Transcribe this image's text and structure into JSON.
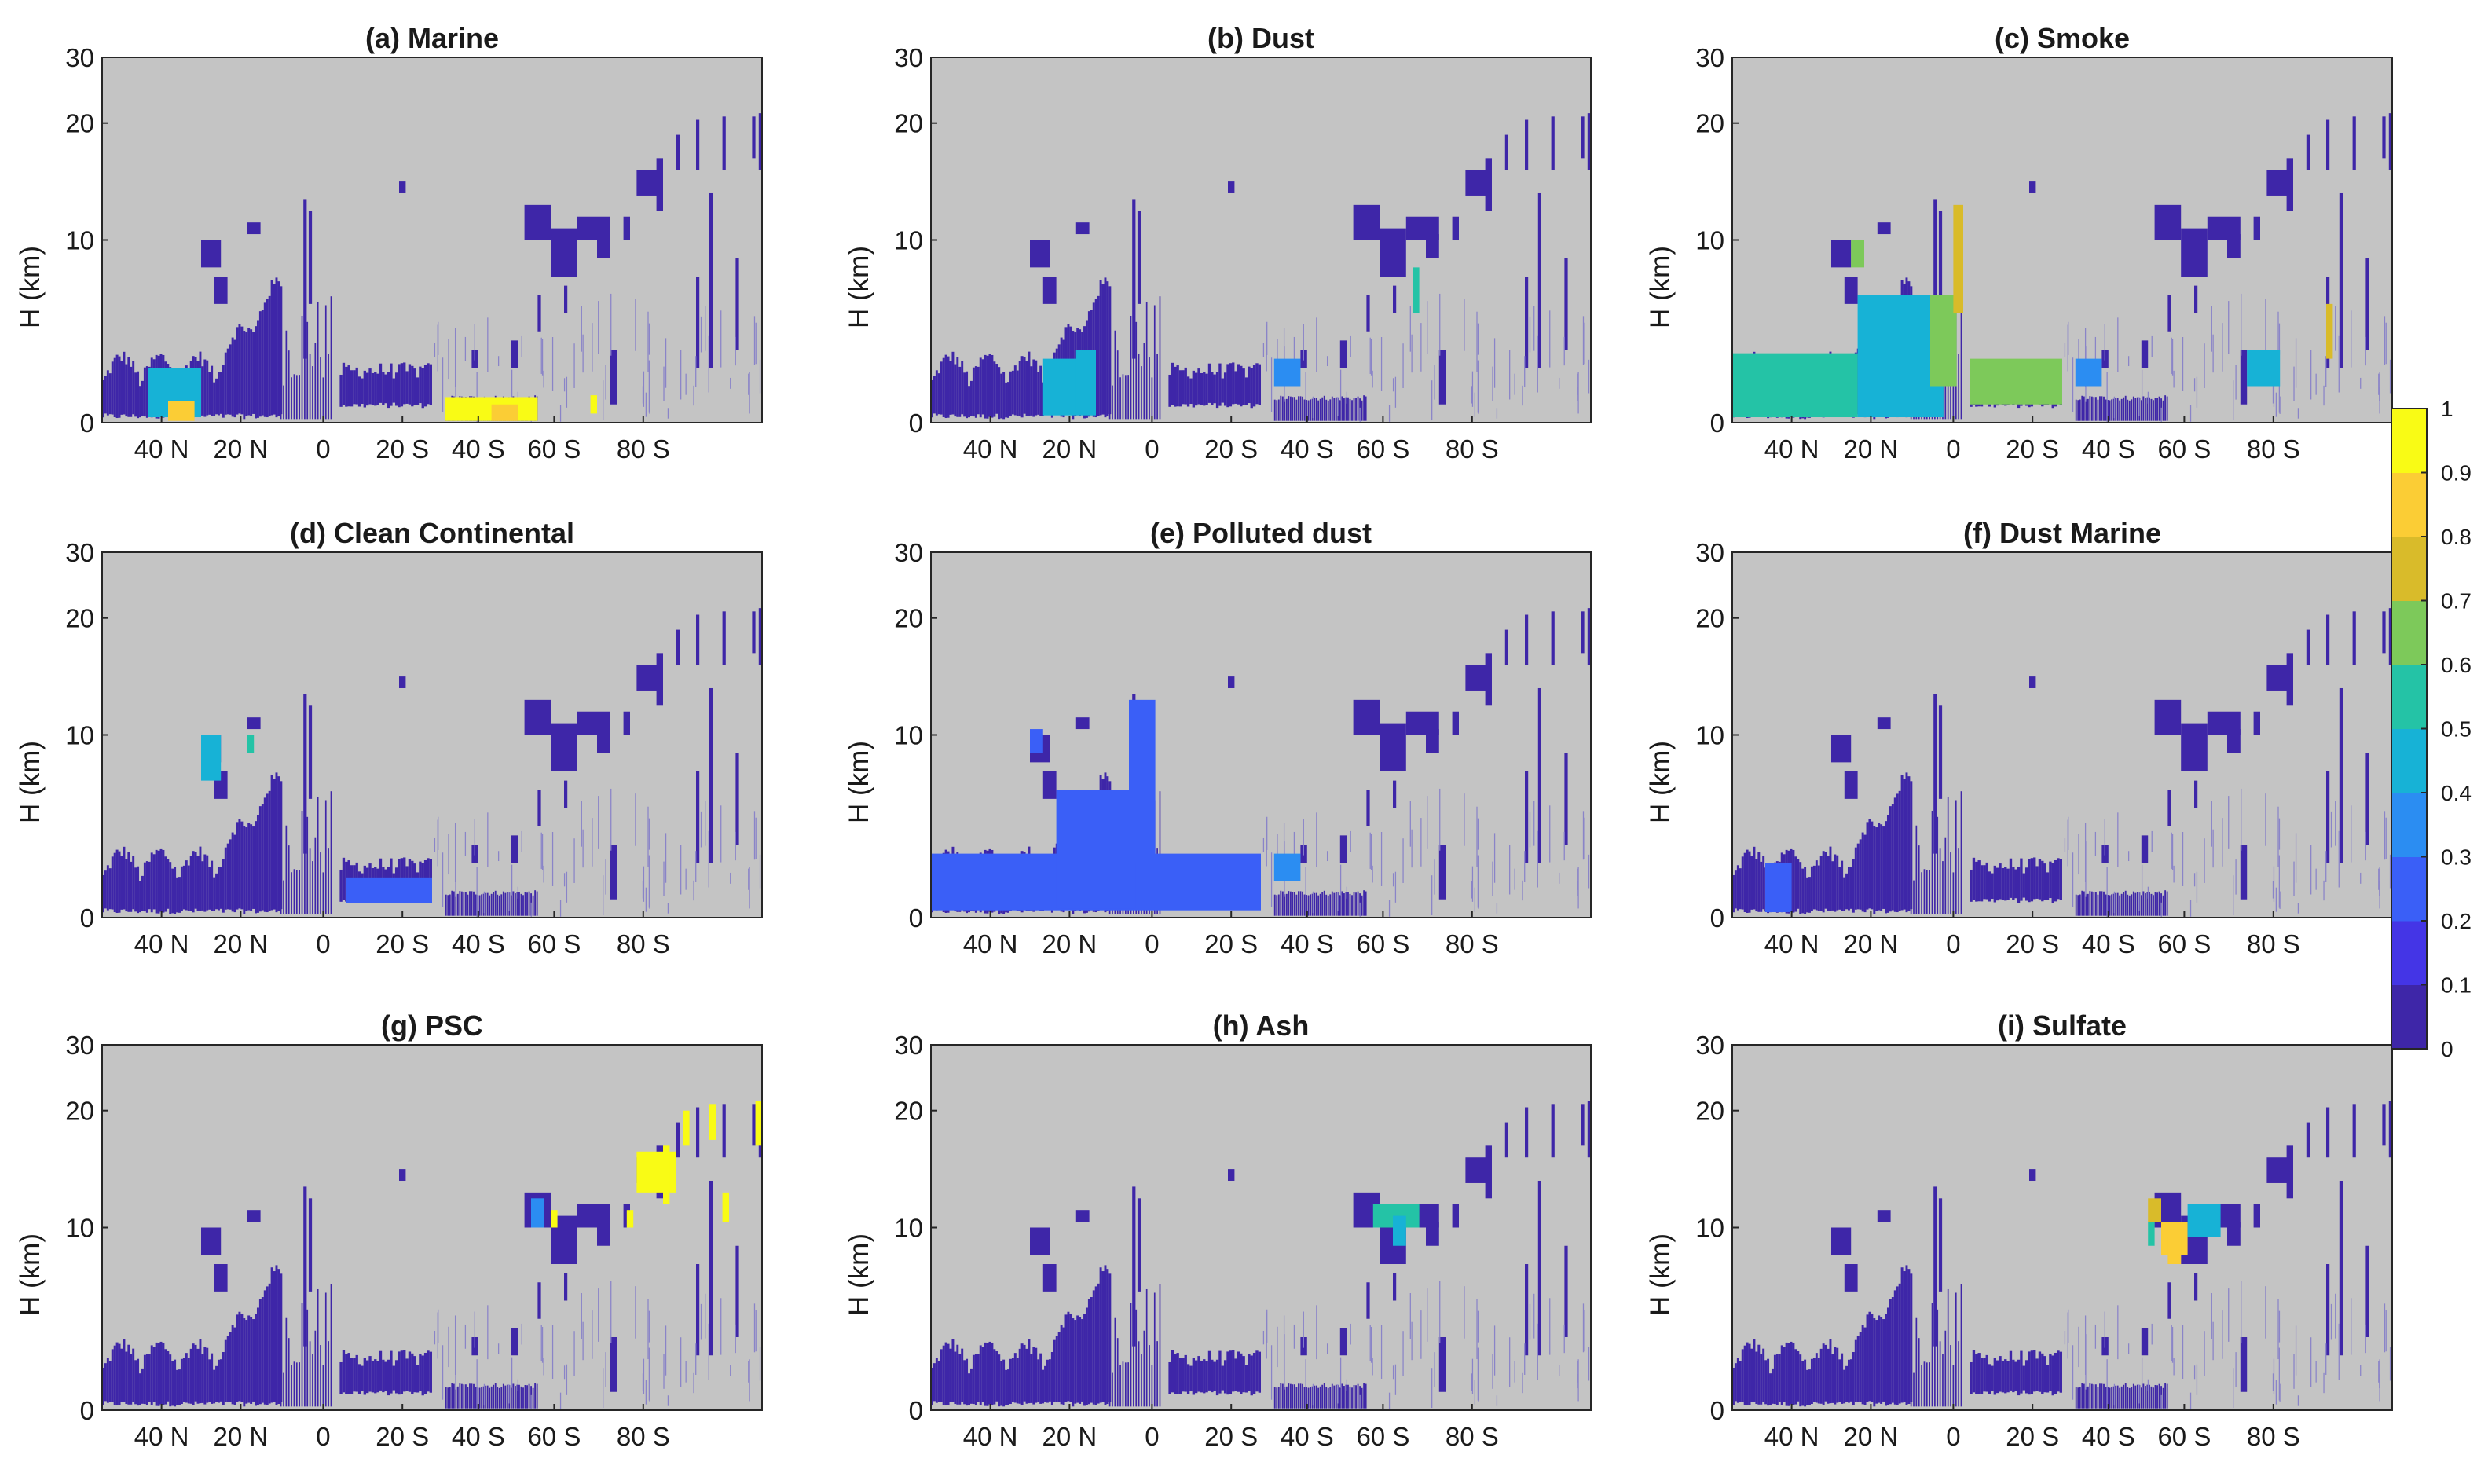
{
  "chart_data": {
    "type": "heatmap",
    "colormap": [
      "#3e26a8",
      "#4435e6",
      "#3a5ff7",
      "#2b8df2",
      "#17b2d6",
      "#24c3a6",
      "#7dc95a",
      "#d9bb2a",
      "#fbcd35",
      "#f9fb15"
    ],
    "colorbar": {
      "ticks": [
        "0",
        "0.1",
        "0.2",
        "0.3",
        "0.4",
        "0.5",
        "0.6",
        "0.7",
        "0.8",
        "0.9",
        "1"
      ],
      "range": [
        0,
        1
      ]
    },
    "background_color": "#c4c4c4",
    "yaxis": {
      "label": "H (km)",
      "ticks": [
        "0",
        "10",
        "20",
        "30"
      ]
    },
    "xaxis": {
      "ticks": [
        "40 N",
        "20 N",
        "0",
        "20 S",
        "40 S",
        "60 S",
        "80 S"
      ]
    },
    "panels": [
      {
        "id": "a",
        "title": "(a) Marine",
        "highlights": [
          {
            "x0": 0.07,
            "x1": 0.15,
            "h0": 0.3,
            "h1": 3.0,
            "v": 0.45
          },
          {
            "x0": 0.1,
            "x1": 0.14,
            "h0": 0.1,
            "h1": 1.2,
            "v": 0.85
          },
          {
            "x0": 0.52,
            "x1": 0.66,
            "h0": 0.1,
            "h1": 1.4,
            "v": 0.97
          },
          {
            "x0": 0.59,
            "x1": 0.63,
            "h0": 0.1,
            "h1": 1.0,
            "v": 0.85
          },
          {
            "x0": 0.74,
            "x1": 0.75,
            "h0": 0.5,
            "h1": 1.5,
            "v": 0.9
          }
        ]
      },
      {
        "id": "b",
        "title": "(b) Dust",
        "highlights": [
          {
            "x0": 0.17,
            "x1": 0.25,
            "h0": 0.4,
            "h1": 3.5,
            "v": 0.4
          },
          {
            "x0": 0.22,
            "x1": 0.25,
            "h0": 0.5,
            "h1": 4.0,
            "v": 0.48
          },
          {
            "x0": 0.52,
            "x1": 0.56,
            "h0": 2.0,
            "h1": 3.5,
            "v": 0.3
          },
          {
            "x0": 0.73,
            "x1": 0.74,
            "h0": 6.0,
            "h1": 8.5,
            "v": 0.5
          }
        ]
      },
      {
        "id": "c",
        "title": "(c) Smoke",
        "highlights": [
          {
            "x0": 0.0,
            "x1": 0.19,
            "h0": 0.3,
            "h1": 3.8,
            "v": 0.5
          },
          {
            "x0": 0.19,
            "x1": 0.32,
            "h0": 0.3,
            "h1": 7.0,
            "v": 0.45
          },
          {
            "x0": 0.3,
            "x1": 0.34,
            "h0": 2.0,
            "h1": 7.0,
            "v": 0.62
          },
          {
            "x0": 0.335,
            "x1": 0.35,
            "h0": 6.0,
            "h1": 13.0,
            "v": 0.78
          },
          {
            "x0": 0.36,
            "x1": 0.5,
            "h0": 1.0,
            "h1": 3.5,
            "v": 0.68
          },
          {
            "x0": 0.18,
            "x1": 0.2,
            "h0": 8.5,
            "h1": 10.0,
            "v": 0.6
          },
          {
            "x0": 0.52,
            "x1": 0.56,
            "h0": 2.0,
            "h1": 3.5,
            "v": 0.35
          },
          {
            "x0": 0.9,
            "x1": 0.91,
            "h0": 3.5,
            "h1": 6.5,
            "v": 0.7
          },
          {
            "x0": 0.78,
            "x1": 0.83,
            "h0": 2.0,
            "h1": 4.0,
            "v": 0.45
          }
        ]
      },
      {
        "id": "d",
        "title": "(d) Clean Continental",
        "highlights": [
          {
            "x0": 0.37,
            "x1": 0.5,
            "h0": 0.8,
            "h1": 2.2,
            "v": 0.22
          },
          {
            "x0": 0.15,
            "x1": 0.18,
            "h0": 7.5,
            "h1": 10.0,
            "v": 0.4
          },
          {
            "x0": 0.22,
            "x1": 0.23,
            "h0": 9.0,
            "h1": 10.0,
            "v": 0.55
          }
        ]
      },
      {
        "id": "e",
        "title": "(e) Polluted dust",
        "highlights": [
          {
            "x0": 0.0,
            "x1": 0.5,
            "h0": 0.4,
            "h1": 3.5,
            "v": 0.24
          },
          {
            "x0": 0.19,
            "x1": 0.31,
            "h0": 0.5,
            "h1": 7.0,
            "v": 0.28
          },
          {
            "x0": 0.3,
            "x1": 0.34,
            "h0": 3.0,
            "h1": 13.0,
            "v": 0.26
          },
          {
            "x0": 0.15,
            "x1": 0.17,
            "h0": 9.0,
            "h1": 10.5,
            "v": 0.22
          },
          {
            "x0": 0.52,
            "x1": 0.56,
            "h0": 2.0,
            "h1": 3.5,
            "v": 0.32
          }
        ]
      },
      {
        "id": "f",
        "title": "(f) Dust Marine",
        "highlights": [
          {
            "x0": 0.05,
            "x1": 0.09,
            "h0": 0.3,
            "h1": 3.0,
            "v": 0.2
          }
        ]
      },
      {
        "id": "g",
        "title": "(g) PSC",
        "highlights": [
          {
            "x0": 0.81,
            "x1": 0.87,
            "h0": 13.0,
            "h1": 16.5,
            "v": 0.97
          },
          {
            "x0": 0.85,
            "x1": 0.86,
            "h0": 12.0,
            "h1": 17.0,
            "v": 0.9
          },
          {
            "x0": 0.88,
            "x1": 0.89,
            "h0": 17.0,
            "h1": 20.0,
            "v": 0.95
          },
          {
            "x0": 0.92,
            "x1": 0.93,
            "h0": 17.5,
            "h1": 21.0,
            "v": 0.95
          },
          {
            "x0": 0.94,
            "x1": 0.95,
            "h0": 10.5,
            "h1": 13.0,
            "v": 0.9
          },
          {
            "x0": 0.99,
            "x1": 1.0,
            "h0": 17.0,
            "h1": 21.5,
            "v": 0.97
          },
          {
            "x0": 0.65,
            "x1": 0.67,
            "h0": 10.0,
            "h1": 12.5,
            "v": 0.35
          },
          {
            "x0": 0.68,
            "x1": 0.69,
            "h0": 10.0,
            "h1": 11.5,
            "v": 0.9
          },
          {
            "x0": 0.795,
            "x1": 0.805,
            "h0": 10.0,
            "h1": 11.5,
            "v": 0.9
          }
        ]
      },
      {
        "id": "h",
        "title": "(h) Ash",
        "highlights": [
          {
            "x0": 0.67,
            "x1": 0.74,
            "h0": 10.0,
            "h1": 12.0,
            "v": 0.55
          },
          {
            "x0": 0.7,
            "x1": 0.72,
            "h0": 9.0,
            "h1": 11.0,
            "v": 0.4
          }
        ]
      },
      {
        "id": "i",
        "title": "(i) Sulfate",
        "highlights": [
          {
            "x0": 0.63,
            "x1": 0.65,
            "h0": 10.5,
            "h1": 12.5,
            "v": 0.7
          },
          {
            "x0": 0.65,
            "x1": 0.69,
            "h0": 8.5,
            "h1": 10.5,
            "v": 0.85
          },
          {
            "x0": 0.66,
            "x1": 0.68,
            "h0": 8.0,
            "h1": 9.5,
            "v": 0.88
          },
          {
            "x0": 0.69,
            "x1": 0.74,
            "h0": 9.5,
            "h1": 12.0,
            "v": 0.4
          },
          {
            "x0": 0.63,
            "x1": 0.64,
            "h0": 9.0,
            "h1": 10.5,
            "v": 0.5
          }
        ]
      }
    ]
  }
}
